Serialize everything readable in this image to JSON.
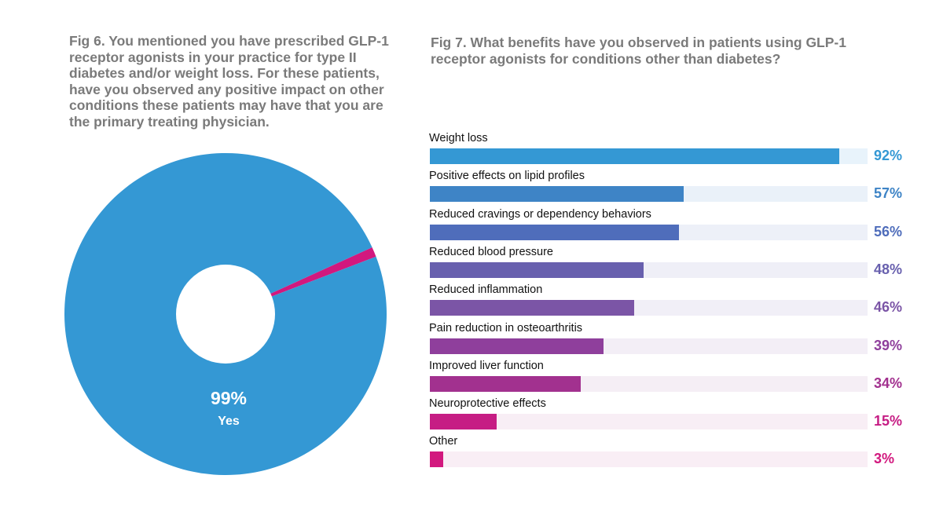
{
  "chart_data": [
    {
      "type": "pie",
      "title": "Fig 6. You mentioned you have prescribed GLP-1 receptor agonists in your practice for type II diabetes and/or weight loss. For these patients, have you observed any positive impact on other conditions these patients may have that you are the primary treating physician.",
      "donut": true,
      "slices": [
        {
          "name": "Yes",
          "value": 99,
          "label": "99%",
          "color": "#3498d4"
        },
        {
          "name": "",
          "value": 1,
          "color": "#d2187e"
        }
      ]
    },
    {
      "type": "bar",
      "orientation": "horizontal",
      "title": "Fig 7. What benefits have you observed in patients using GLP-1 receptor agonists for conditions other than diabetes?",
      "xlim": [
        0,
        100
      ],
      "categories": [
        "Weight loss",
        "Positive effects on lipid profiles",
        "Reduced cravings or dependency behaviors",
        "Reduced blood pressure",
        "Reduced inflammation",
        "Pain reduction in osteoarthritis",
        "Improved liver function",
        "Neuroprotective effects",
        "Other"
      ],
      "values": [
        92,
        57,
        56,
        48,
        46,
        39,
        34,
        15,
        3
      ],
      "value_labels": [
        "92%",
        "57%",
        "56%",
        "48%",
        "46%",
        "39%",
        "34%",
        "15%",
        "3%"
      ],
      "colors": [
        "#3498d4",
        "#3e84c6",
        "#4f6dbb",
        "#6860ae",
        "#7b55a6",
        "#8f3f9c",
        "#a2318f",
        "#c61d84",
        "#d2187e"
      ],
      "track_colors": [
        "#e8f3fb",
        "#eaf1f9",
        "#edf0f8",
        "#efeff7",
        "#f1eff7",
        "#f3eef6",
        "#f5eef5",
        "#f8eef5",
        "#f9eef5"
      ]
    }
  ]
}
